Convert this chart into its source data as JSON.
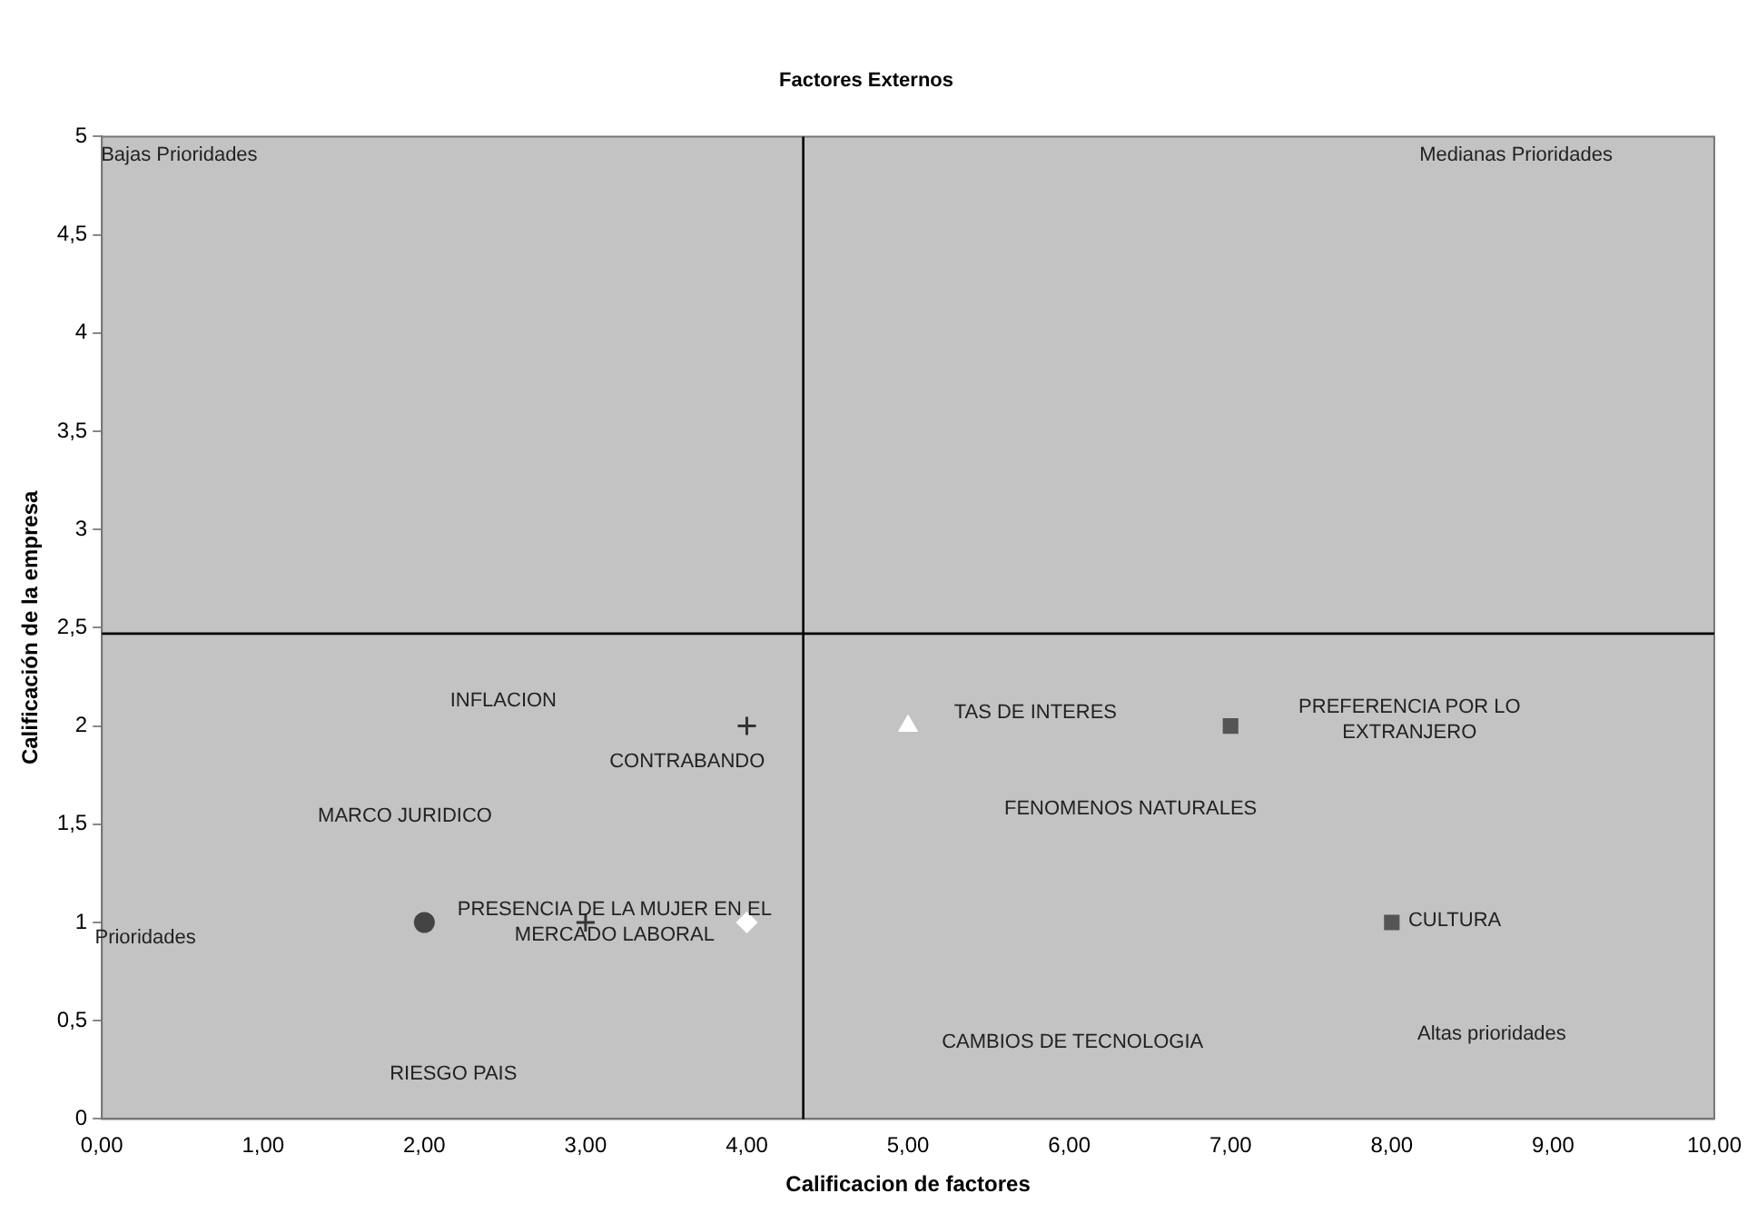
{
  "chart_data": {
    "type": "scatter",
    "title": "Factores Externos",
    "xlabel": "Calificacion de factores",
    "ylabel": "Calificación de la empresa",
    "series": [
      {
        "x": [
          4
        ],
        "values": [
          2
        ],
        "marker": "cross",
        "color": "#333333"
      },
      {
        "x": [
          5
        ],
        "values": [
          2
        ],
        "marker": "triangle",
        "color": "#ffffff"
      },
      {
        "x": [
          7,
          8
        ],
        "values": [
          2,
          1
        ],
        "marker": "square",
        "color": "#555555"
      },
      {
        "x": [
          2
        ],
        "values": [
          1
        ],
        "marker": "circle",
        "color": "#444444"
      },
      {
        "x": [
          3
        ],
        "values": [
          1
        ],
        "marker": "cross",
        "color": "#333333"
      },
      {
        "x": [
          4
        ],
        "values": [
          1
        ],
        "marker": "diamond",
        "color": "#ffffff"
      }
    ],
    "xlim": [
      0,
      10
    ],
    "xticks": [
      {
        "value": 0,
        "label": "0,00"
      },
      {
        "value": 1,
        "label": "1,00"
      },
      {
        "value": 2,
        "label": "2,00"
      },
      {
        "value": 3,
        "label": "3,00"
      },
      {
        "value": 4,
        "label": "4,00"
      },
      {
        "value": 5,
        "label": "5,00"
      },
      {
        "value": 6,
        "label": "6,00"
      },
      {
        "value": 7,
        "label": "7,00"
      },
      {
        "value": 8,
        "label": "8,00"
      },
      {
        "value": 9,
        "label": "9,00"
      },
      {
        "value": 10,
        "label": "10,00"
      }
    ],
    "ylim": [
      0,
      5
    ],
    "yticks": [
      0,
      {
        "value": 0.5,
        "label": "0,5"
      },
      1,
      {
        "value": 1.5,
        "label": "1,5"
      },
      2,
      {
        "value": 2.5,
        "label": "2,5"
      },
      3,
      {
        "value": 3.5,
        "label": "3,5"
      },
      4,
      {
        "value": 4.5,
        "label": "4,5"
      },
      5
    ],
    "ref_lines": [
      {
        "axis": "x",
        "value": 4.35,
        "color": "#000000"
      },
      {
        "axis": "y",
        "value": 2.47,
        "color": "#000000"
      }
    ],
    "annotations": [
      "Bajas Prioridades",
      "Medianas Prioridades",
      "INFLACION",
      "CONTRABANDO",
      "MARCO JURIDICO",
      "PRESENCIA DE LA MUJER EN EL\nMERCADO LABORAL",
      "RIESGO PAIS",
      "TAS DE INTERES",
      "PREFERENCIA POR LO\nEXTRANJERO",
      "FENOMENOS NATURALES",
      "CULTURA",
      "CAMBIOS DE TECNOLOGIA",
      "Altas prioridades",
      "Prioridades"
    ],
    "grid": false,
    "legend": false
  }
}
